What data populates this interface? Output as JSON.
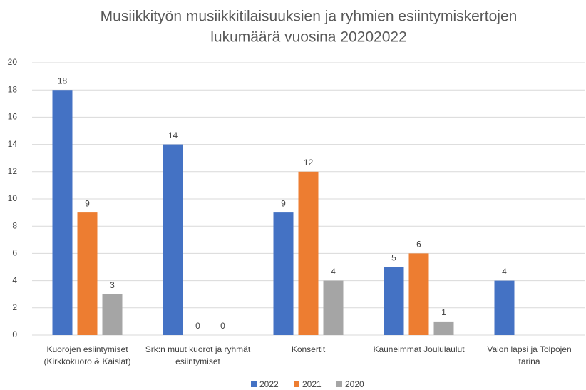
{
  "chart_data": {
    "type": "bar",
    "title": [
      "Musiikkityön musiikkitilaisuuksien ja ryhmien esiintymiskertojen",
      "lukumäärä vuosina 20202022"
    ],
    "categories": [
      "Kuorojen esiintymiset (Kirkkokuoro & Kaislat)",
      "Srk:n muut kuorot ja ryhmät esiintymiset",
      "Konsertit",
      "Kauneimmat Joululaulut",
      "Valon lapsi ja Tolpojen tarina"
    ],
    "series": [
      {
        "name": "2022",
        "color": "#4472c4",
        "values": [
          18,
          14,
          9,
          5,
          4
        ]
      },
      {
        "name": "2021",
        "color": "#ed7d31",
        "values": [
          9,
          0,
          12,
          6,
          null
        ]
      },
      {
        "name": "2020",
        "color": "#a5a5a5",
        "values": [
          3,
          0,
          4,
          1,
          null
        ]
      }
    ],
    "ylim": [
      0,
      20
    ],
    "yticks": [
      0,
      2,
      4,
      6,
      8,
      10,
      12,
      14,
      16,
      18,
      20
    ],
    "grid": true,
    "legend": "bottom"
  }
}
